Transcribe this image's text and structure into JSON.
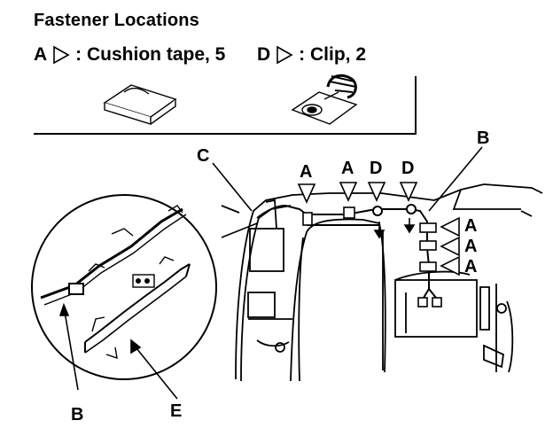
{
  "title": "Fastener Locations",
  "legend": {
    "a_letter": "A",
    "a_desc": ": Cushion tape, 5",
    "d_letter": "D",
    "d_desc": ": Clip, 2"
  },
  "callouts": {
    "c": "C",
    "b_top": "B",
    "a1": "A",
    "a2": "A",
    "d1": "D",
    "d2": "D",
    "a_right1": "A",
    "a_right2": "A",
    "a_right3": "A",
    "b_bottom": "B",
    "e": "E"
  }
}
